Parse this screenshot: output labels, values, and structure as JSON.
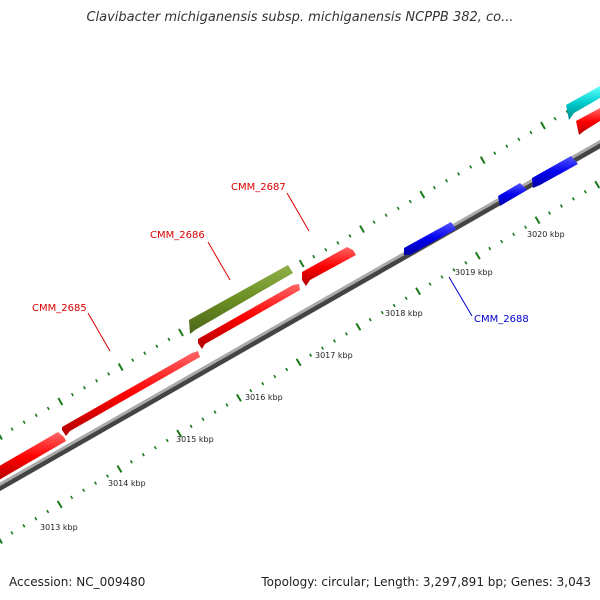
{
  "title": "Clavibacter michiganensis subsp. michiganensis NCPPB 382, co...",
  "footer": {
    "accession": "Accession: NC_009480",
    "summary": "Topology: circular; Length: 3,297,891 bp; Genes: 3,043"
  },
  "colors": {
    "forward_gene": "#ff0000",
    "reverse_gene": "#0000ee",
    "other_feature": "#6b8e23",
    "cyan_feature": "#00cccc",
    "backbone": "#888888",
    "tick": "#1a7a1a"
  },
  "tick_labels": [
    "3013 kbp",
    "3014 kbp",
    "3015 kbp",
    "3016 kbp",
    "3017 kbp",
    "3018 kbp",
    "3019 kbp",
    "3020 kbp"
  ],
  "gene_labels": [
    {
      "text": "CMM_2685",
      "color": "#dd0000"
    },
    {
      "text": "CMM_2686",
      "color": "#dd0000"
    },
    {
      "text": "CMM_2687",
      "color": "#dd0000"
    },
    {
      "text": "CMM_2688",
      "color": "#0000cc"
    }
  ]
}
